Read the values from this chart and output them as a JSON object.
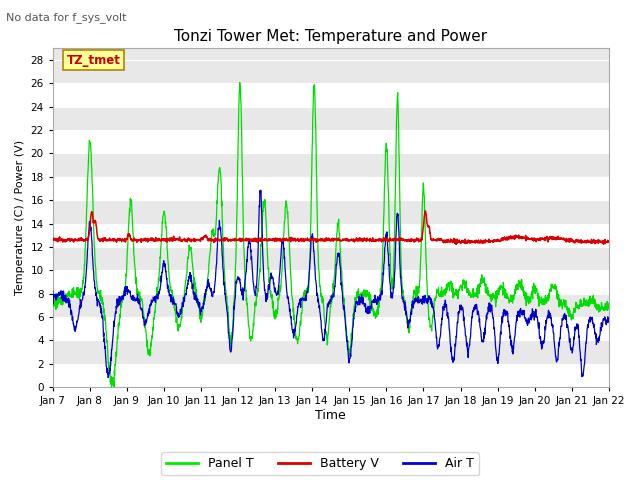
{
  "title": "Tonzi Tower Met: Temperature and Power",
  "subtitle": "No data for f_sys_volt",
  "xlabel": "Time",
  "ylabel": "Temperature (C) / Power (V)",
  "ylim": [
    0,
    29
  ],
  "yticks": [
    0,
    2,
    4,
    6,
    8,
    10,
    12,
    14,
    16,
    18,
    20,
    22,
    24,
    26,
    28
  ],
  "xtick_labels": [
    "Jan 7",
    "Jan 8",
    "Jan 9",
    "Jan 10",
    "Jan 11",
    "Jan 12",
    "Jan 13",
    "Jan 14",
    "Jan 15",
    "Jan 16",
    "Jan 17",
    "Jan 18",
    "Jan 19",
    "Jan 20",
    "Jan 21",
    "Jan 22"
  ],
  "legend_labels": [
    "Panel T",
    "Battery V",
    "Air T"
  ],
  "legend_colors": [
    "#00ee00",
    "#dd0000",
    "#0000dd"
  ],
  "panel_color": "#00dd00",
  "battery_color": "#dd0000",
  "air_color": "#0000cc",
  "bg_color": "#ffffff",
  "plot_bg_color": "#e8e8e8",
  "grid_color": "#ffffff",
  "annotation_text": "TZ_tmet",
  "annotation_color": "#990000",
  "annotation_fg": "#cc0000",
  "annotation_bg": "#ffff99"
}
